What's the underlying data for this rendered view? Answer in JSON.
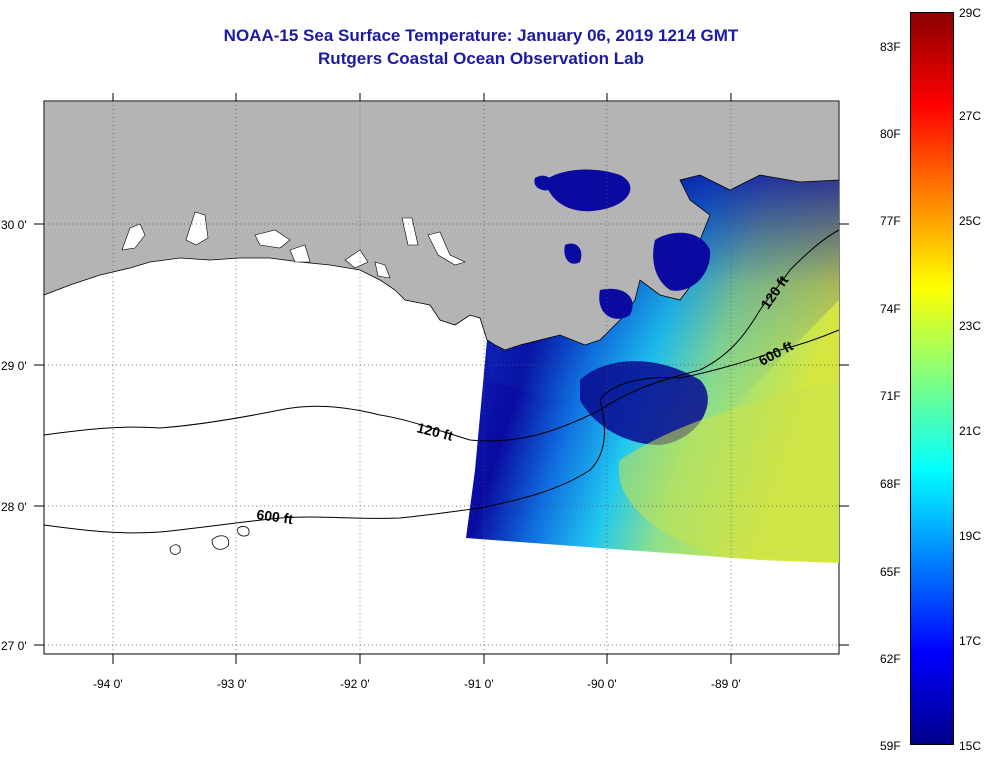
{
  "title": {
    "line1": "NOAA-15 Sea Surface Temperature:  January 06, 2019 1214 GMT",
    "line2": "Rutgers Coastal Ocean Observation Lab"
  },
  "map": {
    "lon_labels": [
      "-94 0'",
      "-93 0'",
      "-92 0'",
      "-91 0'",
      "-90 0'",
      "-89 0'"
    ],
    "lat_labels": [
      "30 0'",
      "29 0'",
      "28 0'",
      "27 0'"
    ],
    "contour_labels": {
      "c120_west": "120 ft",
      "c600_west": "600 ft",
      "c120_east": "120 ft",
      "c600_east": "600 ft"
    },
    "colors": {
      "land": "#b4b4b4",
      "ocean_no_data": "#ffffff",
      "cold": "#0a0aa0",
      "warm": "#d6e640"
    }
  },
  "colorbar": {
    "fahrenheit": [
      "83F",
      "80F",
      "77F",
      "74F",
      "71F",
      "68F",
      "65F",
      "62F",
      "59F"
    ],
    "celsius": [
      "29C",
      "27C",
      "25C",
      "23C",
      "21C",
      "19C",
      "17C",
      "15C"
    ],
    "colors": [
      "#00008b",
      "#0000ff",
      "#0080ff",
      "#00ffff",
      "#80ff80",
      "#ffff00",
      "#ff8000",
      "#ff0000",
      "#8b0000"
    ]
  }
}
